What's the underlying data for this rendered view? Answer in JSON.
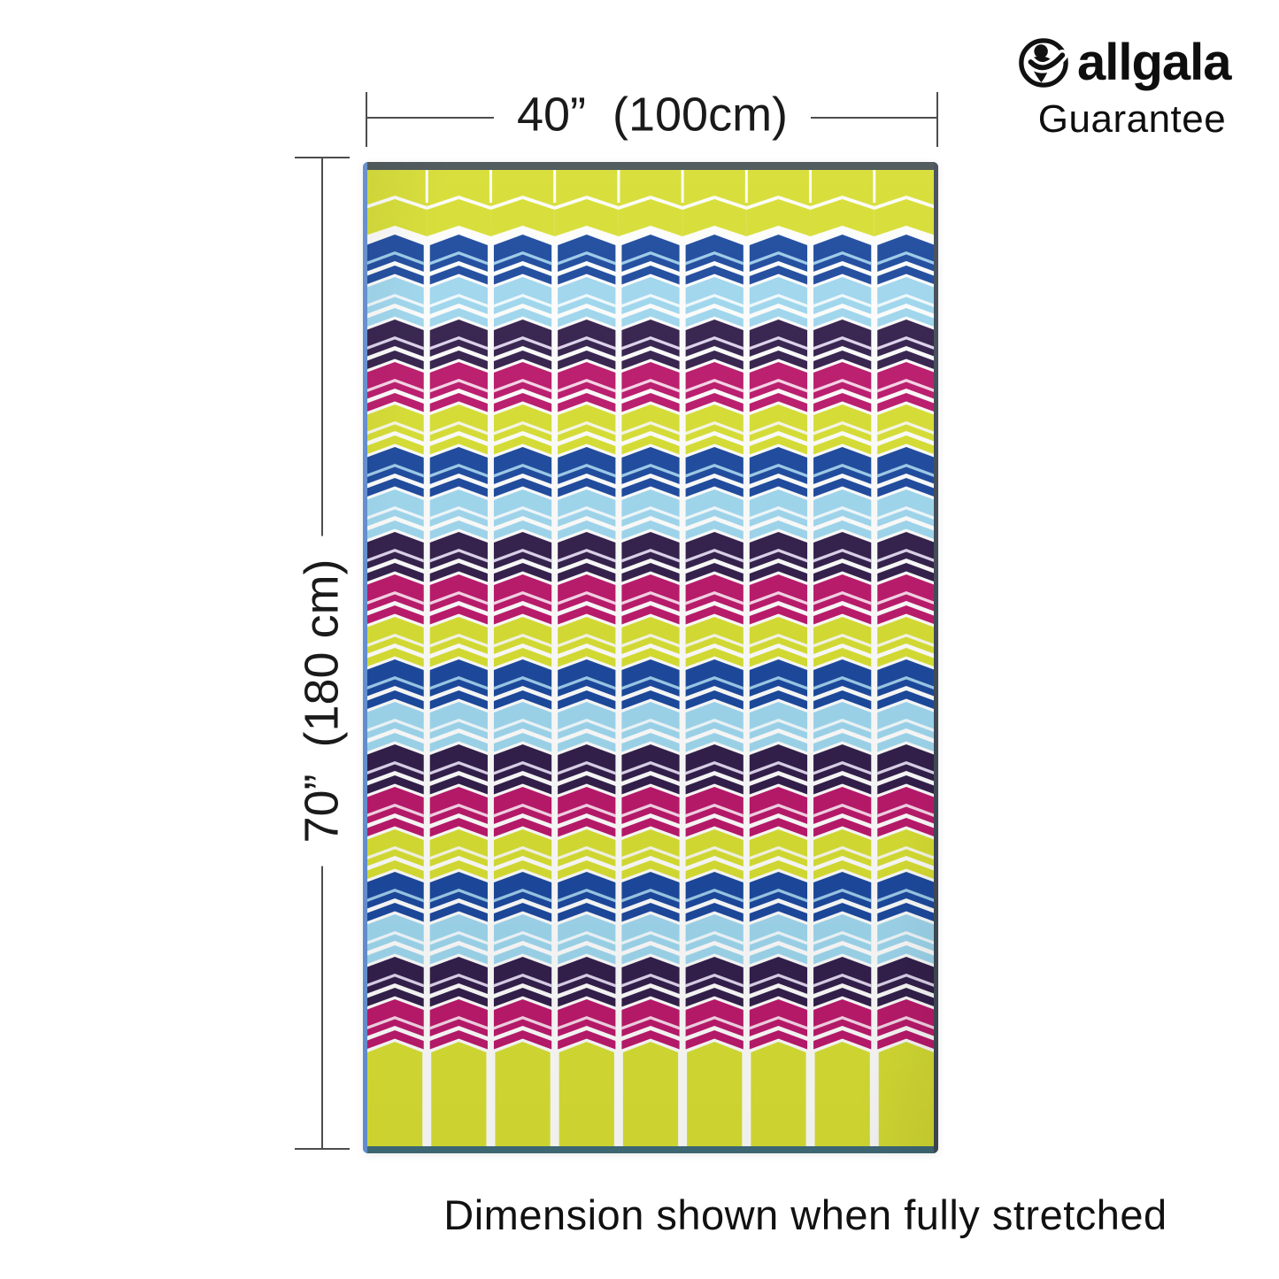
{
  "logo": {
    "brand": "allgala",
    "subtitle": "Guarantee",
    "icon": "person-in-circle"
  },
  "dimensions": {
    "width_label": "40”  (100cm)",
    "height_label": "70”  (180 cm)",
    "line_color": "#4d4d4d"
  },
  "caption": "Dimension shown when fully stretched",
  "towel": {
    "columns": 9,
    "pattern_rows": 19,
    "row_color_sequence": [
      "blue",
      "lightblue",
      "purple",
      "magenta",
      "yellow"
    ],
    "first_row_color": "blue",
    "top_band_color": "yellow",
    "bottom_band_color": "yellow",
    "colors": {
      "yellow": "#d7de33",
      "blue": "#1d4a9e",
      "lightblue": "#9fd7ee",
      "purple": "#33204c",
      "magenta": "#bb1a6c",
      "white": "#fdfdfc"
    },
    "inner_stripe_colors": {
      "blue": "#9ccae9",
      "lightblue": "#f0f9fd",
      "purple": "#ddd3ec",
      "magenta": "#f6d4e6",
      "yellow": "#f7f8e8"
    },
    "hem_colors": {
      "top": "#4a5356",
      "bottom": "#3f6b78",
      "left": "#6593d6",
      "right": "#424c57"
    }
  }
}
